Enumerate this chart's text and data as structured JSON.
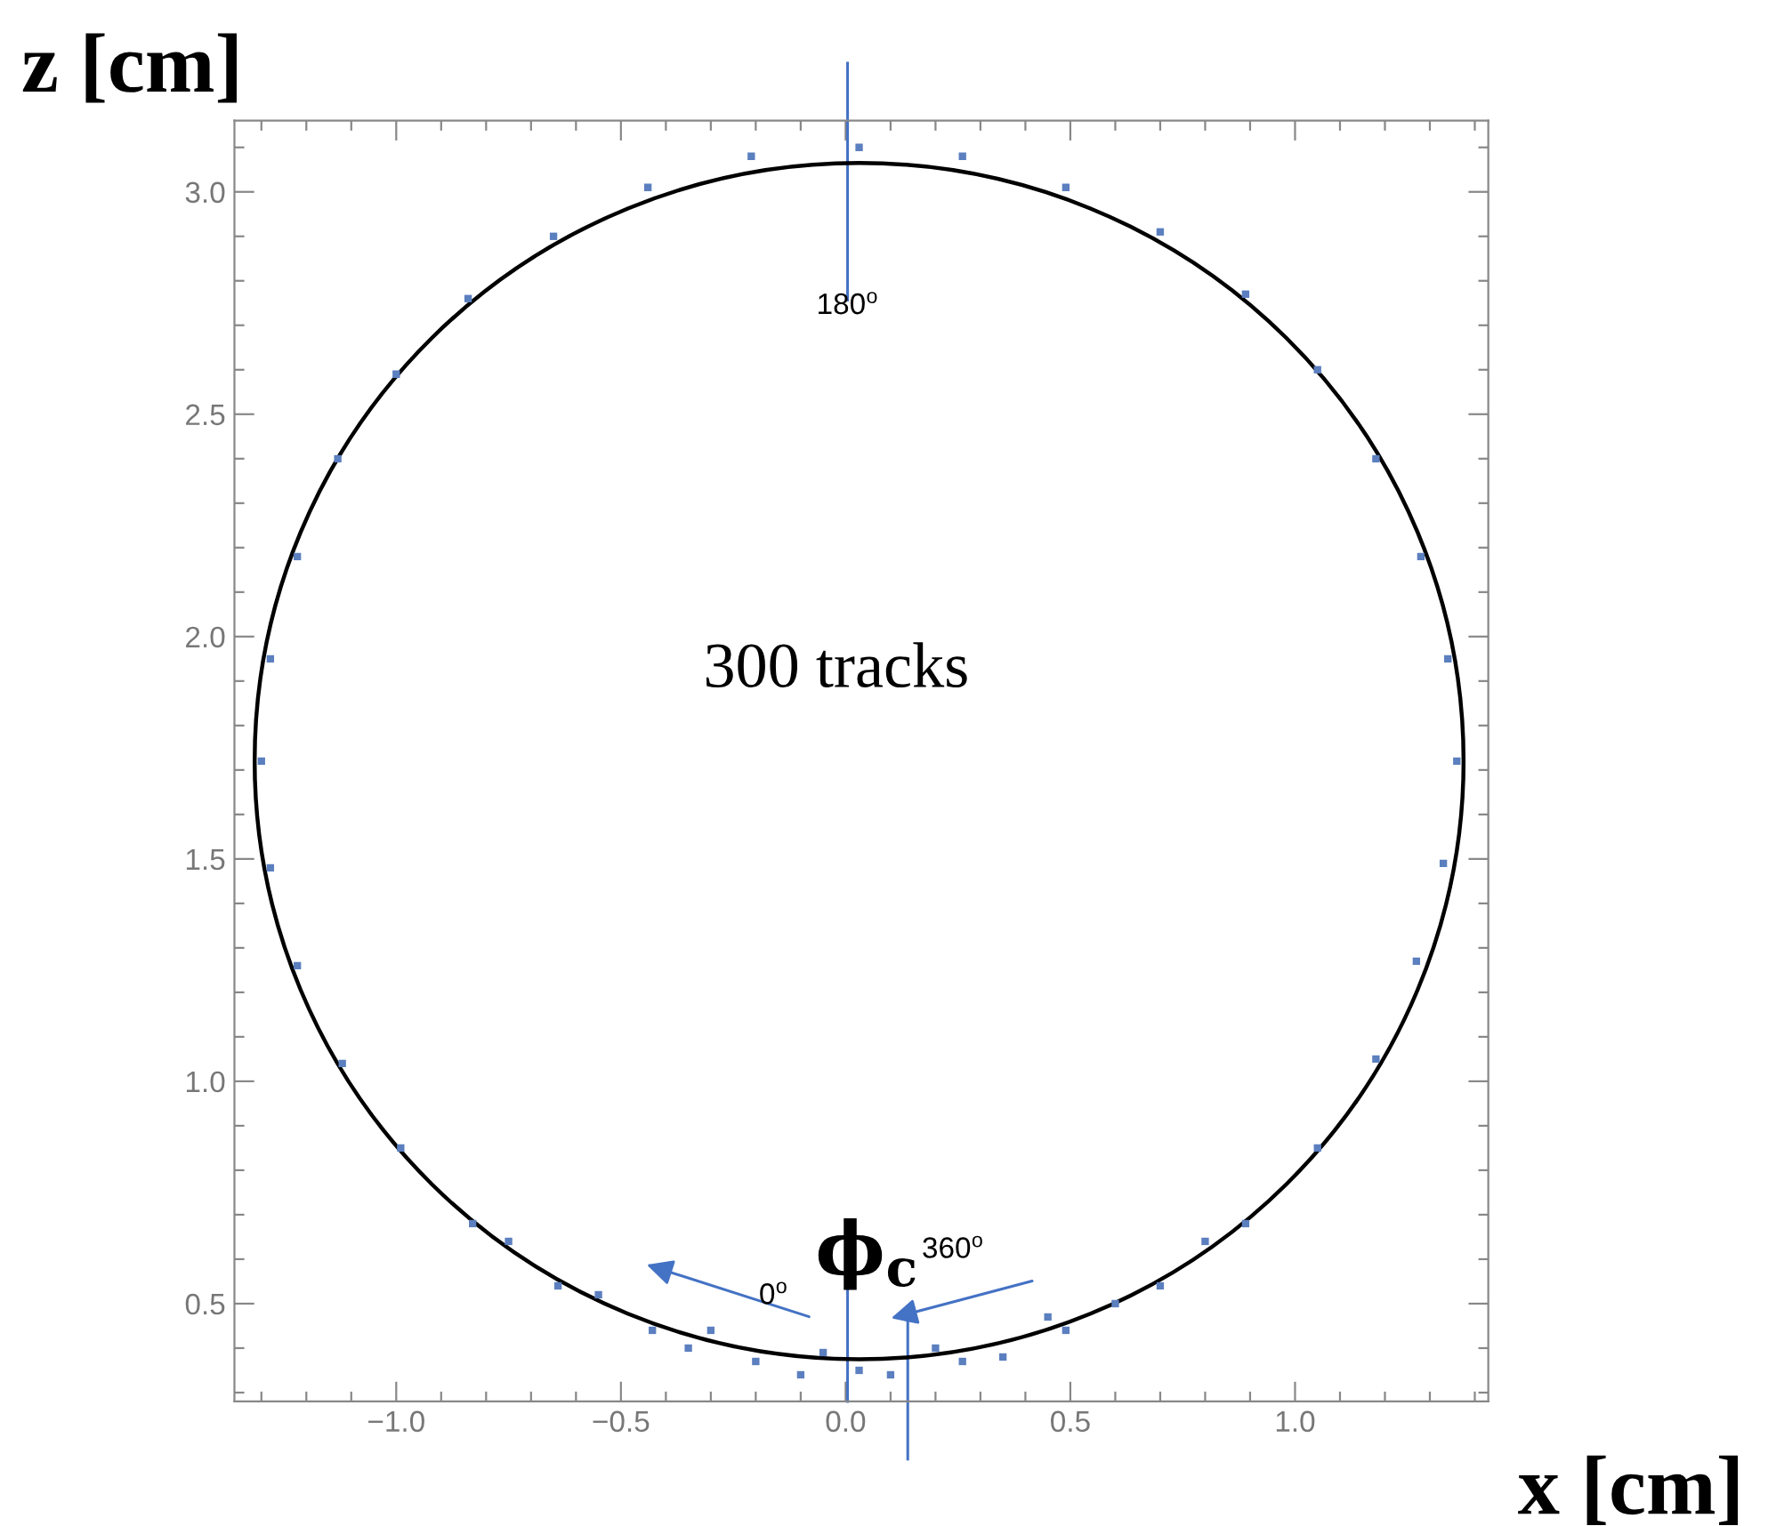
{
  "chart_data": {
    "type": "scatter",
    "xlabel": "x [cm]",
    "ylabel": "z [cm]",
    "xlim": [
      -1.36,
      1.43
    ],
    "ylim": [
      0.28,
      3.16
    ],
    "xticks": [
      {
        "value": -1.3,
        "label": null
      },
      {
        "value": -1.2,
        "label": null
      },
      {
        "value": -1.1,
        "label": null
      },
      {
        "value": -1.0,
        "label": "−1.0"
      },
      {
        "value": -0.9,
        "label": null
      },
      {
        "value": -0.8,
        "label": null
      },
      {
        "value": -0.7,
        "label": null
      },
      {
        "value": -0.6,
        "label": null
      },
      {
        "value": -0.5,
        "label": "−0.5"
      },
      {
        "value": -0.4,
        "label": null
      },
      {
        "value": -0.3,
        "label": null
      },
      {
        "value": -0.2,
        "label": null
      },
      {
        "value": -0.1,
        "label": null
      },
      {
        "value": 0.0,
        "label": "0.0"
      },
      {
        "value": 0.1,
        "label": null
      },
      {
        "value": 0.2,
        "label": null
      },
      {
        "value": 0.3,
        "label": null
      },
      {
        "value": 0.4,
        "label": null
      },
      {
        "value": 0.5,
        "label": "0.5"
      },
      {
        "value": 0.6,
        "label": null
      },
      {
        "value": 0.7,
        "label": null
      },
      {
        "value": 0.8,
        "label": null
      },
      {
        "value": 0.9,
        "label": null
      },
      {
        "value": 1.0,
        "label": "1.0"
      },
      {
        "value": 1.1,
        "label": null
      },
      {
        "value": 1.2,
        "label": null
      },
      {
        "value": 1.3,
        "label": null
      },
      {
        "value": 1.4,
        "label": null
      }
    ],
    "yticks": [
      {
        "value": 0.3,
        "label": null
      },
      {
        "value": 0.4,
        "label": null
      },
      {
        "value": 0.5,
        "label": "0.5"
      },
      {
        "value": 0.6,
        "label": null
      },
      {
        "value": 0.7,
        "label": null
      },
      {
        "value": 0.8,
        "label": null
      },
      {
        "value": 0.9,
        "label": null
      },
      {
        "value": 1.0,
        "label": "1.0"
      },
      {
        "value": 1.1,
        "label": null
      },
      {
        "value": 1.2,
        "label": null
      },
      {
        "value": 1.3,
        "label": null
      },
      {
        "value": 1.4,
        "label": null
      },
      {
        "value": 1.5,
        "label": "1.5"
      },
      {
        "value": 1.6,
        "label": null
      },
      {
        "value": 1.7,
        "label": null
      },
      {
        "value": 1.8,
        "label": null
      },
      {
        "value": 1.9,
        "label": null
      },
      {
        "value": 2.0,
        "label": "2.0"
      },
      {
        "value": 2.1,
        "label": null
      },
      {
        "value": 2.2,
        "label": null
      },
      {
        "value": 2.3,
        "label": null
      },
      {
        "value": 2.4,
        "label": null
      },
      {
        "value": 2.5,
        "label": "2.5"
      },
      {
        "value": 2.6,
        "label": null
      },
      {
        "value": 2.7,
        "label": null
      },
      {
        "value": 2.8,
        "label": null
      },
      {
        "value": 2.9,
        "label": null
      },
      {
        "value": 3.0,
        "label": "3.0"
      },
      {
        "value": 3.1,
        "label": null
      }
    ],
    "grid": false,
    "legend": false,
    "annotations": [
      "300 tracks",
      "180$^{o}$",
      "ϕ$_{c}$",
      "0$^{o}$",
      "360$^{o}$"
    ],
    "series": [
      {
        "marker": "square",
        "color": "#5b7fbf",
        "x": [
          1.36,
          1.34,
          1.28,
          1.18,
          1.05,
          0.89,
          0.7,
          0.49,
          0.26,
          0.03,
          -0.21,
          -0.44,
          -0.65,
          -0.84,
          -1.0,
          -1.13,
          -1.22,
          -1.28,
          -1.3,
          -1.28,
          -1.22,
          -1.12,
          -0.99,
          -0.83,
          -0.64,
          -0.43,
          -0.2,
          0.03,
          0.26,
          0.49,
          0.7,
          0.89,
          1.05,
          1.18,
          1.27,
          1.33,
          -0.55,
          -0.35,
          -0.1,
          0.1,
          0.35,
          0.6,
          -0.75,
          0.8,
          -0.3,
          0.2,
          -0.05,
          0.45
        ],
        "values": [
          1.72,
          1.95,
          2.18,
          2.4,
          2.6,
          2.77,
          2.91,
          3.01,
          3.08,
          3.1,
          3.08,
          3.01,
          2.9,
          2.76,
          2.59,
          2.4,
          2.18,
          1.95,
          1.72,
          1.48,
          1.26,
          1.04,
          0.85,
          0.68,
          0.54,
          0.44,
          0.37,
          0.35,
          0.37,
          0.44,
          0.54,
          0.68,
          0.85,
          1.05,
          1.27,
          1.49,
          0.52,
          0.4,
          0.34,
          0.34,
          0.38,
          0.5,
          0.64,
          0.64,
          0.44,
          0.4,
          0.39,
          0.47
        ]
      }
    ]
  }
}
